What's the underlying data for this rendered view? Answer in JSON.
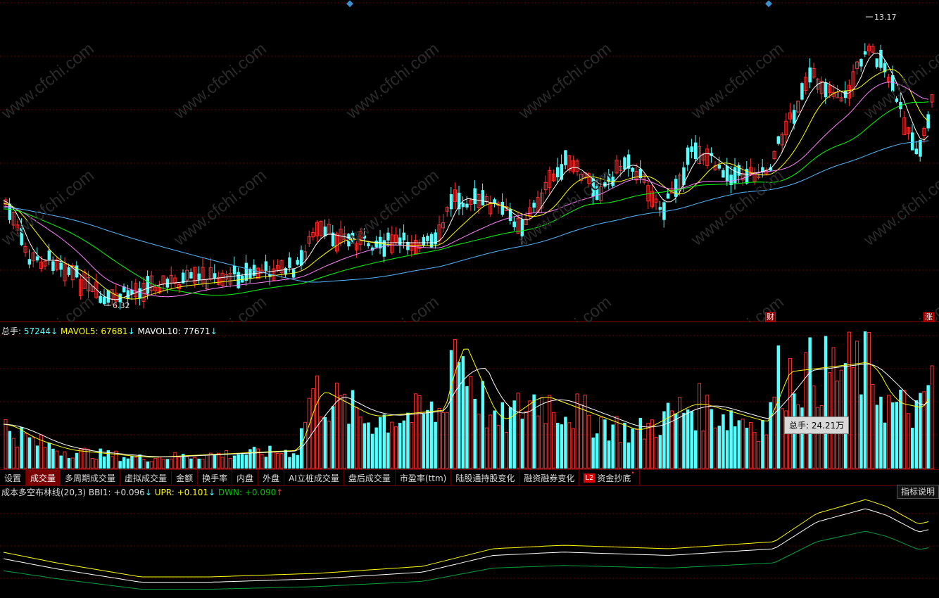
{
  "price_chart": {
    "high_label": "13.17",
    "low_label": "6.32",
    "badge_cai": "财",
    "badge_zhang": "涨",
    "watermark": "www.cfchi.com",
    "colors": {
      "up": "#ff3232",
      "down": "#54ffff",
      "ma5": "#ffffff",
      "ma10": "#ffff00",
      "ma20": "#ff80ff",
      "ma30": "#00ff00",
      "ma60": "#4fb8ff"
    }
  },
  "volume_legend": {
    "total_label": "总手: ",
    "total_value": "57244",
    "total_arrow": "↓",
    "mavol5_label": "MAVOL5: ",
    "mavol5_value": "67681",
    "mavol5_arrow": "↓",
    "mavol10_label": "MAVOL10: ",
    "mavol10_value": "77671",
    "mavol10_arrow": "↓"
  },
  "volume_tooltip": "总手: 24.21万",
  "tabs": [
    {
      "label": "设置"
    },
    {
      "label": "成交量"
    },
    {
      "label": "多周期成交量"
    },
    {
      "label": "虚拟成交量"
    },
    {
      "label": "金额"
    },
    {
      "label": "换手率"
    },
    {
      "label": "内盘"
    },
    {
      "label": "外盘"
    },
    {
      "label": "AI立桩成交量"
    },
    {
      "label": "盘后成交量"
    },
    {
      "label": "市盈率(ttm)"
    },
    {
      "label": "陆股通持股变化"
    },
    {
      "label": "融资融券变化"
    },
    {
      "label": "资金抄底",
      "badge": "L2"
    }
  ],
  "indicator_legend": {
    "name": "成本多空布林线(20,3)",
    "bbi_label": " BBI1: ",
    "bbi_value": "+0.096",
    "bbi_arrow": "↓",
    "upr_label": " UPR: ",
    "upr_value": "+0.101",
    "upr_arrow": "↓",
    "dwn_label": " DWN: ",
    "dwn_value": "+0.090",
    "dwn_arrow": "↑"
  },
  "indicator_explain_button": "指标说明"
}
